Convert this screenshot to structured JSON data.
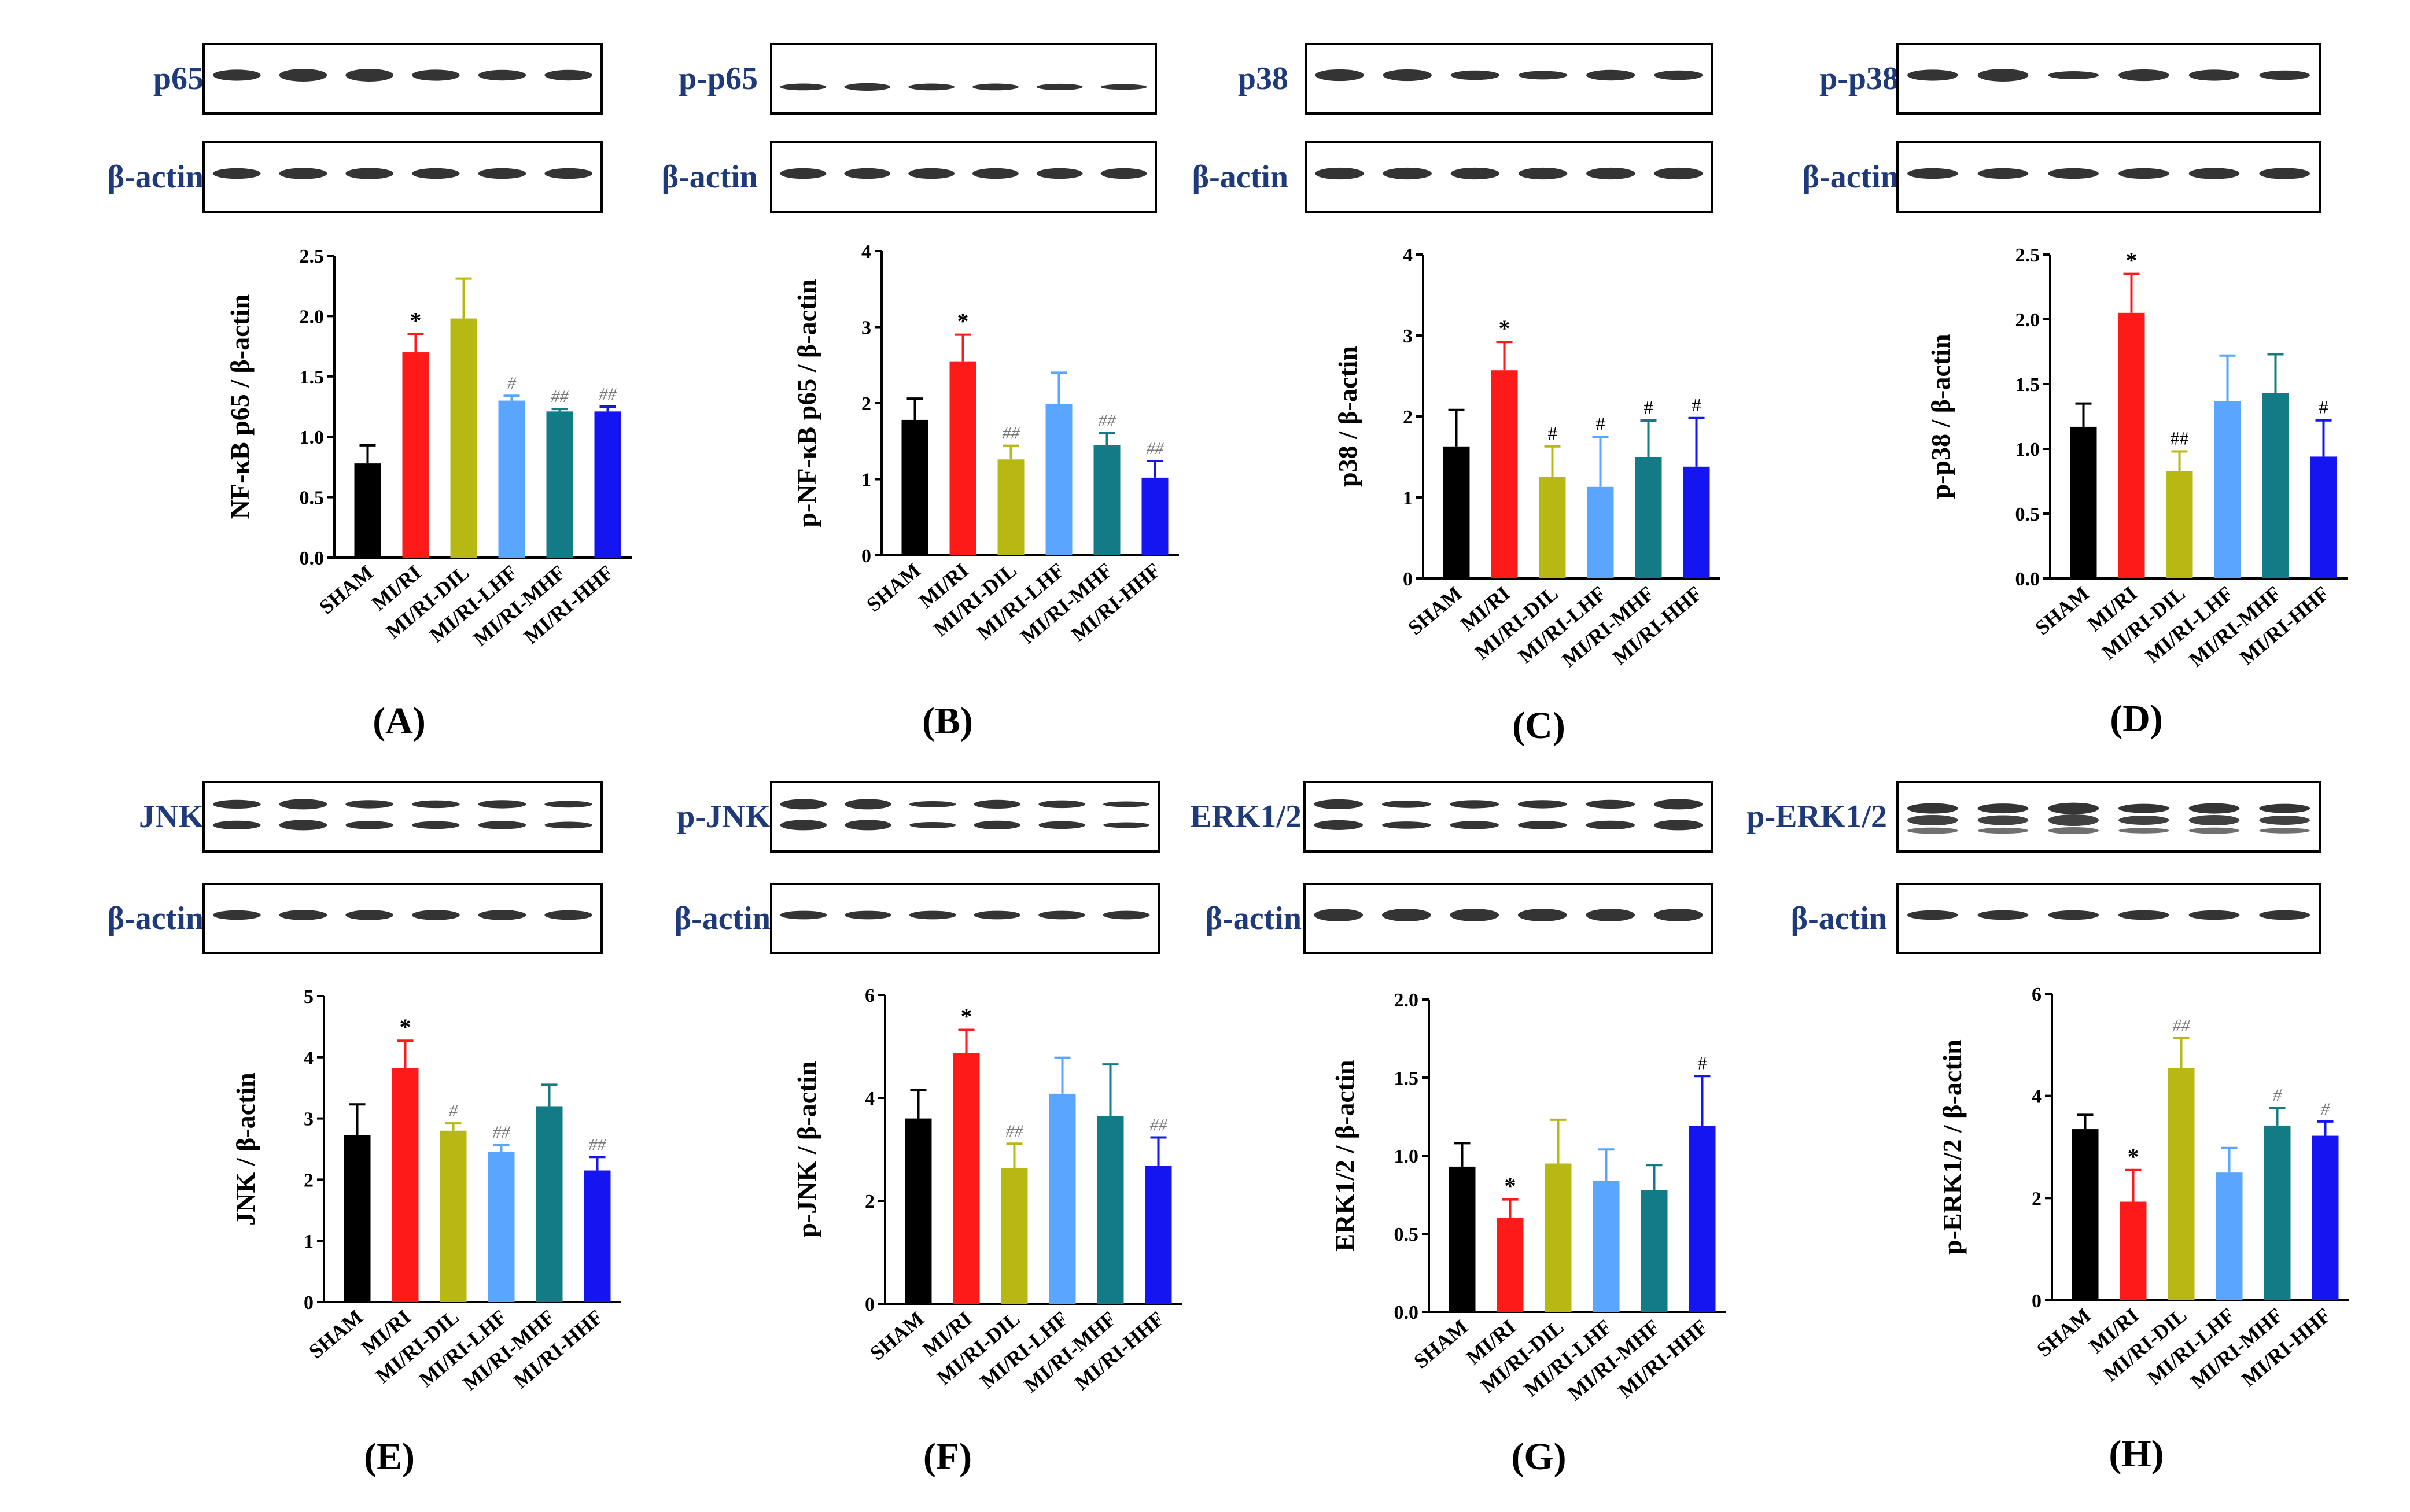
{
  "colors": [
    "#000000",
    "#ff1a1a",
    "#b8b814",
    "#5aa5ff",
    "#137b86",
    "#1515f2"
  ],
  "categories": [
    "SHAM",
    "MI/RI",
    "MI/RI-DIL",
    "MI/RI-LHF",
    "MI/RI-MHF",
    "MI/RI-HHF"
  ],
  "blots": [
    {
      "label": "p65",
      "loading": "β-actin"
    },
    {
      "label": "p-p65",
      "loading": "β-actin"
    },
    {
      "label": "p38",
      "loading": "β-actin"
    },
    {
      "label": "p-p38",
      "loading": "β-actin"
    },
    {
      "label": "JNK",
      "loading": "β-actin"
    },
    {
      "label": "p-JNK",
      "loading": "β-actin"
    },
    {
      "label": "ERK1/2",
      "loading": "β-actin"
    },
    {
      "label": "p-ERK1/2",
      "loading": "β-actin"
    }
  ],
  "chart_data": [
    {
      "type": "bar",
      "panel": "(A)",
      "ylabel": "NF-κB p65 / β-actin",
      "ylim": [
        0,
        2.5
      ],
      "ticks": [
        "0.0",
        "0.5",
        "1.0",
        "1.5",
        "2.0",
        "2.5"
      ],
      "values": [
        0.78,
        1.7,
        1.98,
        1.3,
        1.21,
        1.21
      ],
      "errors": [
        0.15,
        0.15,
        0.33,
        0.04,
        0.02,
        0.04
      ],
      "annotations": [
        "",
        "*",
        "",
        "#",
        "##",
        "##"
      ]
    },
    {
      "type": "bar",
      "panel": "(B)",
      "ylabel": "p-NF-κB p65 / β-actin",
      "ylim": [
        0,
        4
      ],
      "ticks": [
        "0",
        "1",
        "2",
        "3",
        "4"
      ],
      "values": [
        1.78,
        2.55,
        1.26,
        1.99,
        1.45,
        1.02
      ],
      "errors": [
        0.28,
        0.35,
        0.18,
        0.41,
        0.16,
        0.22
      ],
      "annotations": [
        "",
        "*",
        "##",
        "",
        "##",
        "##"
      ]
    },
    {
      "type": "bar",
      "panel": "(C)",
      "ylabel": "p38 / β-actin",
      "ylim": [
        0,
        4
      ],
      "ticks": [
        "0",
        "1",
        "2",
        "3",
        "4"
      ],
      "values": [
        1.63,
        2.57,
        1.25,
        1.13,
        1.5,
        1.38
      ],
      "errors": [
        0.45,
        0.35,
        0.38,
        0.62,
        0.45,
        0.6
      ],
      "annotations": [
        "",
        "*",
        "#",
        "#",
        "#",
        "#"
      ]
    },
    {
      "type": "bar",
      "panel": "(D)",
      "ylabel": "p-p38 / β-actin",
      "ylim": [
        0,
        2.5
      ],
      "ticks": [
        "0.0",
        "0.5",
        "1.0",
        "1.5",
        "2.0",
        "2.5"
      ],
      "values": [
        1.17,
        2.05,
        0.83,
        1.37,
        1.43,
        0.94
      ],
      "errors": [
        0.18,
        0.3,
        0.15,
        0.35,
        0.3,
        0.28
      ],
      "annotations": [
        "",
        "*",
        "##",
        "",
        "",
        "#"
      ]
    },
    {
      "type": "bar",
      "panel": "(E)",
      "ylabel": "JNK / β-actin",
      "ylim": [
        0,
        5
      ],
      "ticks": [
        "0",
        "1",
        "2",
        "3",
        "4",
        "5"
      ],
      "values": [
        2.73,
        3.82,
        2.8,
        2.45,
        3.2,
        2.15
      ],
      "errors": [
        0.5,
        0.45,
        0.12,
        0.12,
        0.35,
        0.22
      ],
      "annotations": [
        "",
        "*",
        "#",
        "##",
        "",
        "##"
      ]
    },
    {
      "type": "bar",
      "panel": "(F)",
      "ylabel": "p-JNK / β-actin",
      "ylim": [
        0,
        6
      ],
      "ticks": [
        "0",
        "2",
        "4",
        "6"
      ],
      "values": [
        3.6,
        4.87,
        2.63,
        4.08,
        3.65,
        2.68
      ],
      "errors": [
        0.55,
        0.45,
        0.48,
        0.7,
        1.0,
        0.55
      ],
      "annotations": [
        "",
        "*",
        "##",
        "",
        "",
        "##"
      ]
    },
    {
      "type": "bar",
      "panel": "(G)",
      "ylabel": "ERK1/2 / β-actin",
      "ylim": [
        0,
        2.0
      ],
      "ticks": [
        "0.0",
        "0.5",
        "1.0",
        "1.5",
        "2.0"
      ],
      "values": [
        0.93,
        0.6,
        0.95,
        0.84,
        0.78,
        1.19
      ],
      "errors": [
        0.15,
        0.12,
        0.28,
        0.2,
        0.16,
        0.32
      ],
      "annotations": [
        "",
        "*",
        "",
        "",
        "",
        "#"
      ]
    },
    {
      "type": "bar",
      "panel": "(H)",
      "ylabel": "p-ERK1/2 / β-actin",
      "ylim": [
        0,
        6
      ],
      "ticks": [
        "0",
        "2",
        "4",
        "6"
      ],
      "values": [
        3.35,
        1.93,
        4.55,
        2.5,
        3.42,
        3.22
      ],
      "errors": [
        0.28,
        0.62,
        0.58,
        0.48,
        0.35,
        0.28
      ],
      "annotations": [
        "",
        "*",
        "##",
        "",
        "#",
        "#"
      ]
    }
  ]
}
